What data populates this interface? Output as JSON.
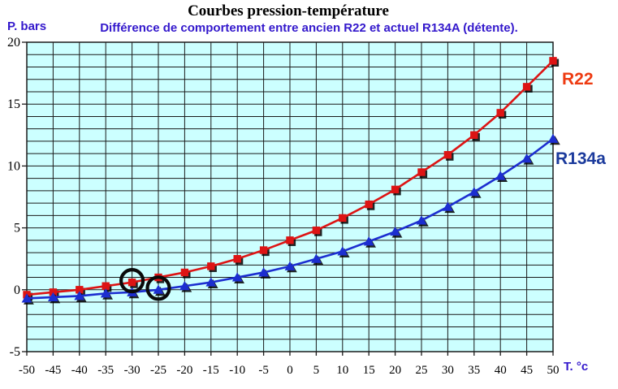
{
  "header": {
    "title": "Courbes pression-température",
    "subtitle": "Différence de comportement entre ancien R22 et actuel R134A (détente)."
  },
  "axes": {
    "y_unit_label": "P. bars",
    "x_unit_label": "T. °c"
  },
  "series_labels": {
    "r22": "R22",
    "r134a": "R134a"
  },
  "colors": {
    "accent_text": "#3318cc",
    "r22_line": "#dd1414",
    "r134a_line": "#1c2ed0",
    "r22_label": "#ee3b12",
    "r134a_label": "#1b3a9c",
    "plot_background": "#ccffff",
    "grid": "#1a1a1a",
    "tick_text": "#000000",
    "highlight_circle": "#0a0a0a"
  },
  "chart_data": {
    "type": "line",
    "title": "Courbes pression-température",
    "subtitle": "Différence de comportement entre ancien R22 et actuel R134A (détente).",
    "xlabel": "T. °c",
    "ylabel": "P. bars",
    "x": [
      -50,
      -45,
      -40,
      -35,
      -30,
      -25,
      -20,
      -15,
      -10,
      -5,
      0,
      5,
      10,
      15,
      20,
      25,
      30,
      35,
      40,
      45,
      50
    ],
    "series": [
      {
        "name": "R22",
        "color": "#dd1414",
        "marker": "square",
        "values": [
          -0.4,
          -0.2,
          0.0,
          0.3,
          0.6,
          1.0,
          1.4,
          1.9,
          2.5,
          3.2,
          4.0,
          4.8,
          5.8,
          6.9,
          8.1,
          9.5,
          10.9,
          12.5,
          14.3,
          16.4,
          18.5
        ]
      },
      {
        "name": "R134a",
        "color": "#1c2ed0",
        "marker": "triangle",
        "values": [
          -0.7,
          -0.6,
          -0.5,
          -0.3,
          -0.2,
          0.0,
          0.3,
          0.6,
          1.0,
          1.4,
          1.9,
          2.5,
          3.1,
          3.9,
          4.7,
          5.6,
          6.7,
          7.9,
          9.2,
          10.6,
          12.2
        ]
      }
    ],
    "xlim": [
      -50,
      50
    ],
    "ylim": [
      -5,
      20
    ],
    "x_ticks": [
      -50,
      -45,
      -40,
      -35,
      -30,
      -25,
      -20,
      -15,
      -10,
      -5,
      0,
      5,
      10,
      15,
      20,
      25,
      30,
      35,
      40,
      45,
      50
    ],
    "y_ticks": [
      -5,
      0,
      5,
      10,
      15,
      20
    ],
    "grid": {
      "x_step": 5,
      "y_step": 1,
      "visible": true
    },
    "legend_position": "labels-right-of-plot",
    "annotations": [
      {
        "type": "circle",
        "series": "R22",
        "x": -30,
        "y": 0.6
      },
      {
        "type": "circle",
        "series": "R134a",
        "x": -25,
        "y": 0.0
      }
    ]
  }
}
